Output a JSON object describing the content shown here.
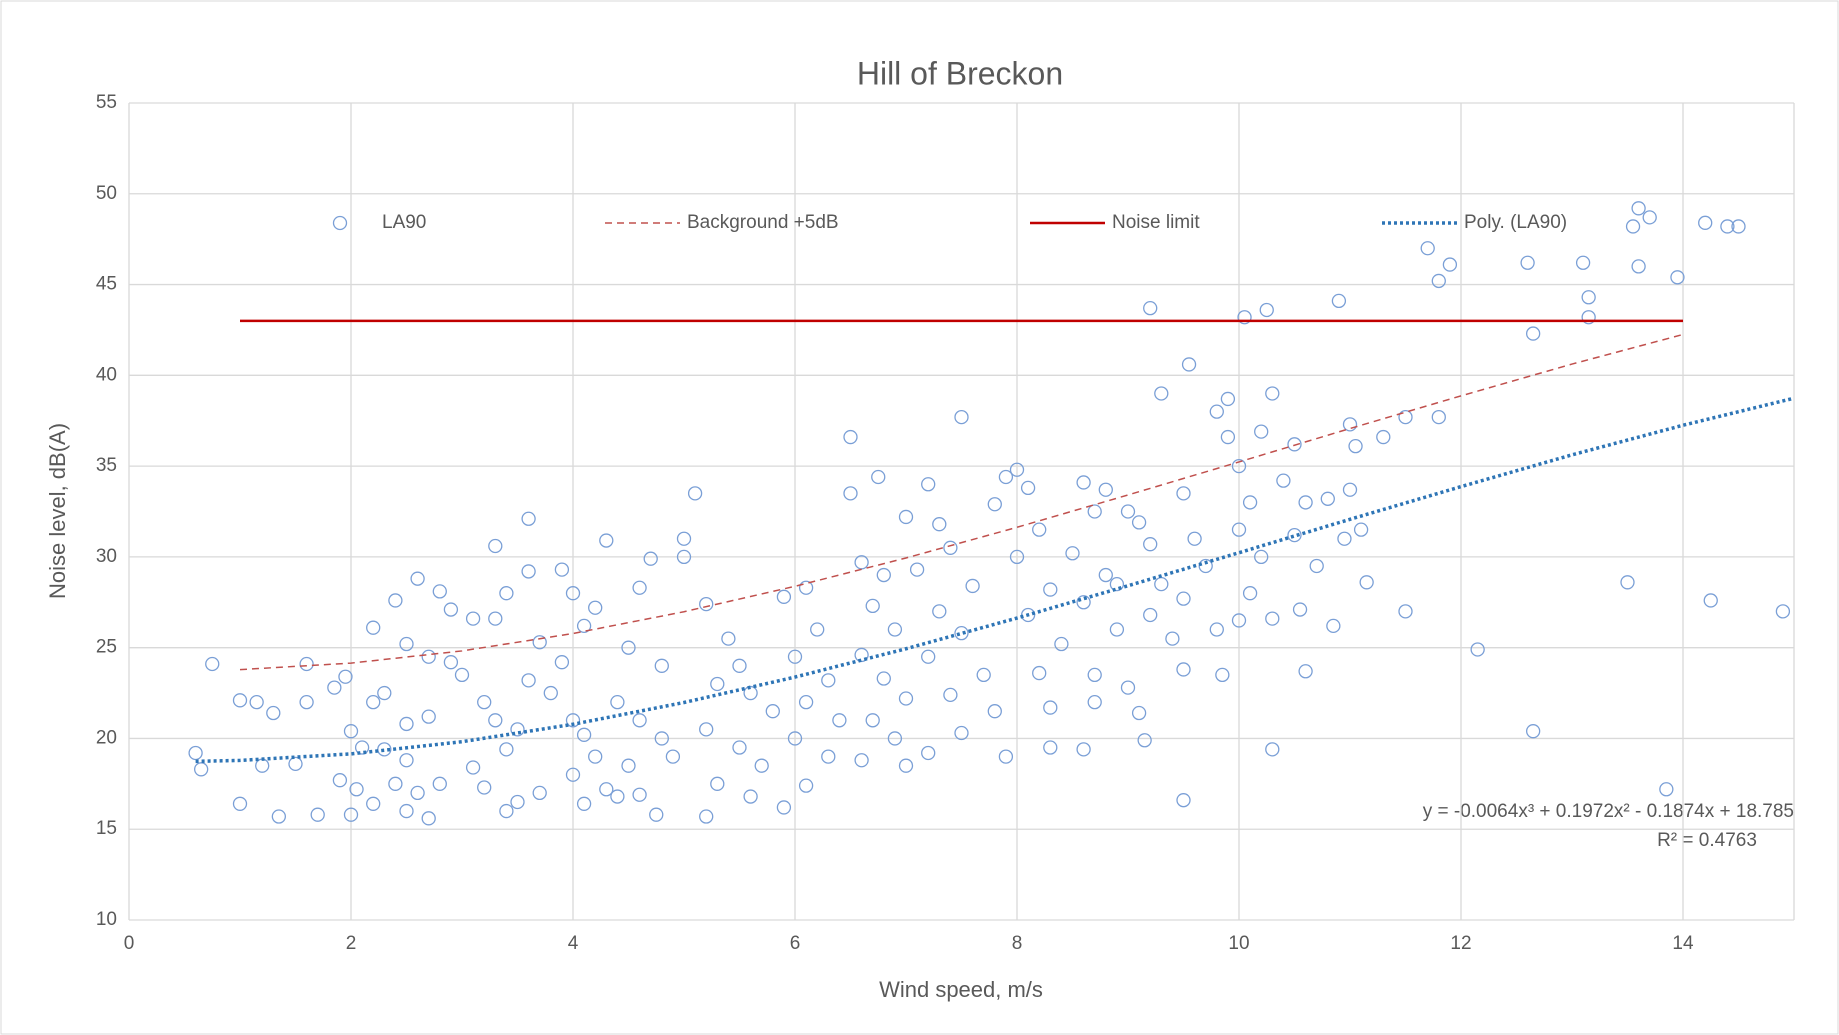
{
  "chart_data": {
    "type": "scatter",
    "title": "Hill of Breckon",
    "x_label": "Wind speed, m/s",
    "y_label": "Noise level, dB(A)",
    "xlim": [
      0,
      15
    ],
    "ylim": [
      10,
      55
    ],
    "xticks": [
      0,
      2,
      4,
      6,
      8,
      10,
      12,
      14
    ],
    "yticks": [
      10,
      15,
      20,
      25,
      30,
      35,
      40,
      45,
      50,
      55
    ],
    "grid": true,
    "legend": "top",
    "annotations": [
      "y = -0.0064x³ + 0.1972x² - 0.1874x + 18.785",
      "R² = 0.4763"
    ],
    "series": [
      {
        "name": "LA90",
        "color": "#7a9fd6",
        "line_style": "marker",
        "x": [
          13.6,
          13.7,
          13.55,
          14.4,
          14.5,
          14.2,
          11.7,
          11.9,
          11.8,
          12.6,
          13.1,
          13.6,
          13.95,
          13.15,
          13.15,
          12.65,
          10.9,
          10.25,
          10.05,
          9.2,
          9.55,
          10.3,
          9.3,
          7.5,
          6.5,
          13.5,
          14.25,
          14.9,
          12.15,
          12.65,
          13.85,
          9.5,
          10.3,
          5.1,
          3.6,
          3.3,
          0.75,
          0.6,
          0.65,
          1,
          1.35,
          1.6,
          1.95,
          1.6,
          1.85,
          2.2,
          2.3,
          2.5,
          2.7,
          2.0,
          2.1,
          2.3,
          2.5,
          1.5,
          1.9,
          2.05,
          2.4,
          2.6,
          2.8,
          2.2,
          2.5,
          2.7,
          1.7,
          2.0,
          1.2,
          1.0,
          1.15,
          1.3,
          2.2,
          2.4,
          2.6,
          2.8,
          2.9,
          3.1,
          2.5,
          2.7,
          2.9,
          3.0,
          3.2,
          3.3,
          3.5,
          3.4,
          3.1,
          3.2,
          3.5,
          3.7,
          3.4,
          3.6,
          3.8,
          3.9,
          4.0,
          4.1,
          4.2,
          4.0,
          4.3,
          4.1,
          4.4,
          4.6,
          4.75,
          3.9,
          4.0,
          4.3,
          4.2,
          4.6,
          4.7,
          3.6,
          3.4,
          4.5,
          4.8,
          4.4,
          4.6,
          4.8,
          4.9,
          4.5,
          3.7,
          3.3,
          4.1,
          5.0,
          5.0,
          5.2,
          5.4,
          5.5,
          5.3,
          5.6,
          5.8,
          5.2,
          5.5,
          5.7,
          5.3,
          5.6,
          5.2,
          5.9,
          5.9,
          6.1,
          6.2,
          6.0,
          6.3,
          6.1,
          6.4,
          6.0,
          6.3,
          6.1,
          6.5,
          6.6,
          6.8,
          6.7,
          6.9,
          6.6,
          6.8,
          7.0,
          6.7,
          6.9,
          7.0,
          6.6,
          6.75,
          7.0,
          7.2,
          7.3,
          7.4,
          7.1,
          7.6,
          7.3,
          7.5,
          7.2,
          7.7,
          7.4,
          7.8,
          7.5,
          7.2,
          7.9,
          7.8,
          7.9,
          8.0,
          8.1,
          8.2,
          8.0,
          8.3,
          8.1,
          8.4,
          8.2,
          8.3,
          8.3,
          8.6,
          8.7,
          8.5,
          8.8,
          8.6,
          8.9,
          8.7,
          8.6,
          8.8,
          9.0,
          8.9,
          8.7,
          9.1,
          9.2,
          9.3,
          9.2,
          9.4,
          9.0,
          9.1,
          9.15,
          9.5,
          9.6,
          9.7,
          9.5,
          9.8,
          9.5,
          9.85,
          9.8,
          9.9,
          9.9,
          10.0,
          10.1,
          10.0,
          10.2,
          10.1,
          10.0,
          10.3,
          10.2,
          10.5,
          10.4,
          10.6,
          10.5,
          10.7,
          10.55,
          10.6,
          10.8,
          11.0,
          11.05,
          11.0,
          10.95,
          11.1,
          11.15,
          10.85,
          11.5,
          11.8,
          11.3,
          11.5
        ],
        "values": [
          49.2,
          48.7,
          48.2,
          48.2,
          48.2,
          48.4,
          47,
          46.1,
          45.2,
          46.2,
          46.2,
          46,
          45.4,
          44.3,
          43.2,
          42.3,
          44.1,
          43.6,
          43.2,
          43.7,
          40.6,
          39,
          39,
          37.7,
          36.6,
          28.6,
          27.6,
          27,
          24.9,
          20.4,
          17.2,
          16.6,
          19.4,
          33.5,
          32.1,
          30.6,
          24.1,
          19.2,
          18.3,
          16.4,
          15.7,
          24.1,
          23.4,
          22,
          22.8,
          22,
          22.5,
          20.8,
          21.2,
          20.4,
          19.5,
          19.4,
          18.8,
          18.6,
          17.7,
          17.2,
          17.5,
          17,
          17.5,
          16.4,
          16,
          15.6,
          15.8,
          15.8,
          18.5,
          22.1,
          22,
          21.4,
          26.1,
          27.6,
          28.8,
          28.1,
          27.1,
          26.6,
          25.2,
          24.5,
          24.2,
          23.5,
          22,
          21,
          20.5,
          19.4,
          18.4,
          17.3,
          16.5,
          17,
          16,
          23.2,
          22.5,
          24.2,
          21,
          20.2,
          19,
          18,
          17.2,
          16.4,
          16.8,
          16.9,
          15.8,
          29.3,
          28,
          30.9,
          27.2,
          28.3,
          29.9,
          29.2,
          28,
          25,
          24,
          22,
          21,
          20,
          19,
          18.5,
          25.3,
          26.6,
          26.2,
          31,
          30,
          27.4,
          25.5,
          24,
          23,
          22.5,
          21.5,
          20.5,
          19.5,
          18.5,
          17.5,
          16.8,
          15.7,
          16.2,
          27.8,
          28.3,
          26,
          24.5,
          23.2,
          22,
          21,
          20,
          19,
          17.4,
          33.5,
          29.7,
          29,
          27.3,
          26,
          24.6,
          23.3,
          22.2,
          21,
          20,
          18.5,
          18.8,
          34.4,
          32.2,
          34,
          31.8,
          30.5,
          29.3,
          28.4,
          27,
          25.8,
          24.5,
          23.5,
          22.4,
          21.5,
          20.3,
          19.2,
          19,
          32.9,
          34.4,
          34.8,
          33.8,
          31.5,
          30,
          28.2,
          26.8,
          25.2,
          23.6,
          21.7,
          19.5,
          34.1,
          32.5,
          30.2,
          29,
          27.5,
          26,
          23.5,
          19.4,
          33.7,
          32.5,
          28.5,
          22,
          31.9,
          30.7,
          28.5,
          26.8,
          25.5,
          22.8,
          21.4,
          19.9,
          33.5,
          31,
          29.5,
          27.7,
          26,
          23.8,
          23.5,
          38,
          38.7,
          36.6,
          35,
          33,
          31.5,
          30,
          28,
          26.5,
          26.6,
          36.9,
          36.2,
          34.2,
          33,
          31.2,
          29.5,
          27.1,
          23.7,
          33.2,
          37.3,
          36.1,
          33.7,
          31,
          31.5,
          28.6,
          26.2,
          37.7,
          37.7,
          36.6,
          27
        ]
      },
      {
        "name": "Background +5dB",
        "color": "#c0504d",
        "line_style": "dashed",
        "x": [
          1,
          2,
          3,
          4,
          5,
          6,
          7,
          8,
          9,
          10,
          11,
          12,
          13,
          14
        ],
        "values": [
          23.79,
          24.15,
          24.82,
          25.78,
          26.98,
          28.38,
          29.94,
          31.63,
          33.41,
          35.23,
          37.07,
          38.87,
          40.62,
          42.25
        ]
      },
      {
        "name": "Noise limit",
        "color": "#c00000",
        "line_style": "solid",
        "x": [
          1,
          14
        ],
        "values": [
          43,
          43
        ]
      },
      {
        "name": "Poly. (LA90)",
        "color": "#2e75b6",
        "line_style": "dotted",
        "x": [
          0.6,
          1,
          2,
          3,
          4,
          5,
          6,
          7,
          8,
          9,
          10,
          11,
          12,
          13,
          14,
          15
        ],
        "values": [
          18.74,
          18.79,
          19.15,
          19.82,
          20.78,
          21.98,
          23.38,
          24.94,
          26.63,
          28.41,
          30.23,
          32.07,
          33.87,
          35.62,
          37.25,
          38.74
        ]
      }
    ]
  }
}
